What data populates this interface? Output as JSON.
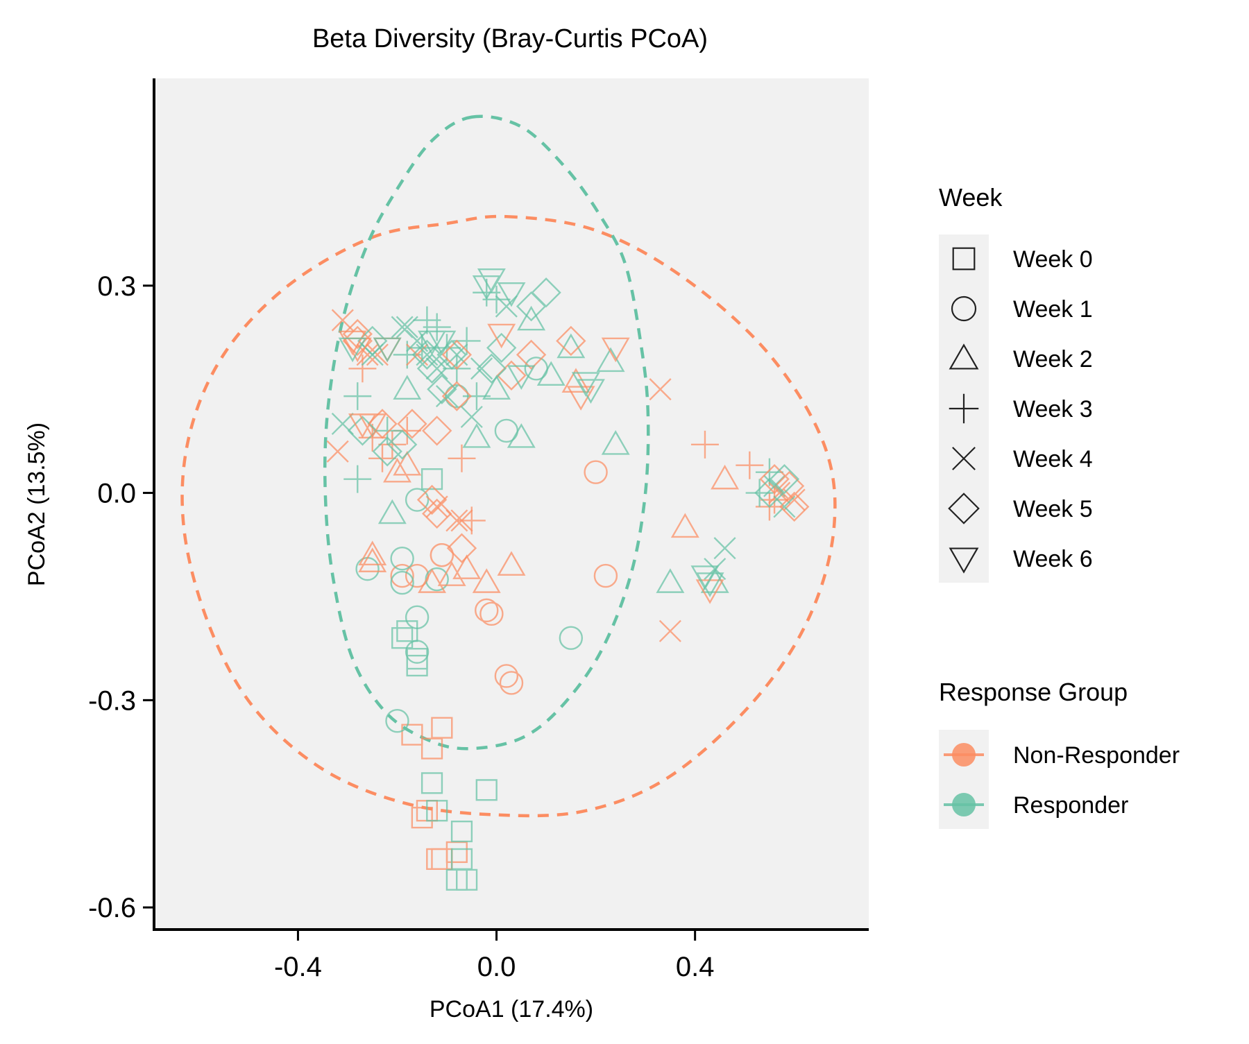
{
  "chart_data": {
    "type": "scatter",
    "title": "Beta Diversity (Bray-Curtis PCoA)",
    "xlabel": "PCoA1 (17.4%)",
    "ylabel": "PCoA2 (13.5%)",
    "xlim": [
      -0.69,
      0.75
    ],
    "ylim": [
      -0.63,
      0.6
    ],
    "x_ticks": [
      -0.4,
      0.0,
      0.4
    ],
    "x_tick_labels": [
      "-0.4",
      "0.0",
      "0.4"
    ],
    "y_ticks": [
      0.3,
      0.0,
      -0.3,
      -0.6
    ],
    "y_tick_labels": [
      "0.3",
      "0.0",
      "-0.3",
      "-0.6"
    ],
    "grid": false,
    "background": "#f1f1f1",
    "colors": {
      "Non-Responder": "#fc8d62",
      "Responder": "#66c2a5"
    },
    "legend_placement": "right",
    "shape_legend": {
      "title": "Week",
      "items": [
        {
          "label": "Week 0",
          "shape": "square"
        },
        {
          "label": "Week 1",
          "shape": "circle"
        },
        {
          "label": "Week 2",
          "shape": "triangle"
        },
        {
          "label": "Week 3",
          "shape": "plus"
        },
        {
          "label": "Week 4",
          "shape": "cross"
        },
        {
          "label": "Week 5",
          "shape": "diamond"
        },
        {
          "label": "Week 6",
          "shape": "triangle-down"
        }
      ]
    },
    "color_legend": {
      "title": "Response Group",
      "items": [
        {
          "label": "Non-Responder",
          "color": "#fc8d62"
        },
        {
          "label": "Responder",
          "color": "#66c2a5"
        }
      ]
    },
    "ellipses": [
      {
        "group": "Non-Responder",
        "color": "#fc8d62",
        "linestyle": "dashed",
        "path": [
          [
            0.02,
            0.4
          ],
          [
            0.2,
            0.38
          ],
          [
            0.38,
            0.31
          ],
          [
            0.55,
            0.2
          ],
          [
            0.66,
            0.07
          ],
          [
            0.68,
            -0.05
          ],
          [
            0.63,
            -0.18
          ],
          [
            0.52,
            -0.3
          ],
          [
            0.35,
            -0.41
          ],
          [
            0.18,
            -0.46
          ],
          [
            0.0,
            -0.466
          ],
          [
            -0.18,
            -0.45
          ],
          [
            -0.35,
            -0.4
          ],
          [
            -0.49,
            -0.31
          ],
          [
            -0.58,
            -0.19
          ],
          [
            -0.63,
            -0.05
          ],
          [
            -0.62,
            0.08
          ],
          [
            -0.55,
            0.2
          ],
          [
            -0.42,
            0.3
          ],
          [
            -0.25,
            0.37
          ],
          [
            -0.1,
            0.39
          ],
          [
            0.02,
            0.4
          ]
        ]
      },
      {
        "group": "Responder",
        "color": "#66c2a5",
        "linestyle": "dashed",
        "path": [
          [
            -0.05,
            0.544
          ],
          [
            0.05,
            0.53
          ],
          [
            0.14,
            0.47
          ],
          [
            0.21,
            0.4
          ],
          [
            0.26,
            0.33
          ],
          [
            0.29,
            0.22
          ],
          [
            0.305,
            0.12
          ],
          [
            0.3,
            0.0
          ],
          [
            0.27,
            -0.12
          ],
          [
            0.21,
            -0.23
          ],
          [
            0.13,
            -0.31
          ],
          [
            0.05,
            -0.355
          ],
          [
            -0.05,
            -0.37
          ],
          [
            -0.13,
            -0.36
          ],
          [
            -0.22,
            -0.32
          ],
          [
            -0.29,
            -0.24
          ],
          [
            -0.33,
            -0.12
          ],
          [
            -0.345,
            0.0
          ],
          [
            -0.34,
            0.12
          ],
          [
            -0.31,
            0.25
          ],
          [
            -0.26,
            0.36
          ],
          [
            -0.2,
            0.44
          ],
          [
            -0.13,
            0.51
          ],
          [
            -0.05,
            0.544
          ]
        ]
      }
    ],
    "series": [
      {
        "group": "Non-Responder",
        "week": "Week 0",
        "shape": "square",
        "x": [
          -0.17,
          -0.11,
          -0.13,
          -0.14,
          -0.15,
          -0.11,
          -0.12,
          -0.08
        ],
        "y": [
          -0.35,
          -0.34,
          -0.37,
          -0.46,
          -0.47,
          -0.53,
          -0.53,
          -0.52
        ]
      },
      {
        "group": "Responder",
        "week": "Week 0",
        "shape": "square",
        "x": [
          -0.19,
          -0.18,
          -0.16,
          -0.16,
          -0.13,
          -0.13,
          -0.12,
          -0.02,
          -0.07,
          -0.07,
          -0.08,
          -0.06
        ],
        "y": [
          -0.21,
          -0.2,
          -0.24,
          -0.25,
          0.02,
          -0.42,
          -0.46,
          -0.43,
          -0.49,
          -0.53,
          -0.56,
          -0.56
        ]
      },
      {
        "group": "Non-Responder",
        "week": "Week 1",
        "shape": "circle",
        "x": [
          -0.19,
          -0.16,
          -0.11,
          -0.11,
          -0.02,
          -0.01,
          0.02,
          0.03,
          0.2,
          0.22
        ],
        "y": [
          -0.12,
          -0.12,
          -0.09,
          -0.09,
          -0.17,
          -0.175,
          -0.265,
          -0.275,
          0.03,
          -0.12
        ]
      },
      {
        "group": "Responder",
        "week": "Week 1",
        "shape": "circle",
        "x": [
          -0.26,
          -0.19,
          -0.19,
          -0.12,
          -0.16,
          -0.16,
          -0.16,
          -0.2,
          -0.08,
          0.02,
          0.08,
          0.15
        ],
        "y": [
          -0.11,
          -0.095,
          -0.13,
          -0.125,
          -0.18,
          -0.23,
          -0.01,
          -0.33,
          0.14,
          0.09,
          0.18,
          -0.21
        ]
      },
      {
        "group": "Non-Responder",
        "week": "Week 2",
        "shape": "triangle",
        "x": [
          -0.25,
          -0.25,
          -0.2,
          -0.18,
          -0.13,
          -0.09,
          -0.06,
          -0.02,
          0.03,
          0.16,
          0.38,
          0.46
        ],
        "y": [
          -0.09,
          -0.1,
          0.03,
          0.04,
          -0.13,
          -0.12,
          -0.11,
          -0.13,
          -0.105,
          0.16,
          -0.05,
          0.02
        ]
      },
      {
        "group": "Responder",
        "week": "Week 2",
        "shape": "triangle",
        "x": [
          -0.21,
          -0.18,
          -0.04,
          0.0,
          0.05,
          0.07,
          0.11,
          0.15,
          0.23,
          0.24,
          0.35,
          0.44
        ],
        "y": [
          -0.03,
          0.15,
          0.08,
          0.15,
          0.08,
          0.25,
          0.17,
          0.21,
          0.19,
          0.07,
          -0.13,
          -0.13
        ]
      },
      {
        "group": "Non-Responder",
        "week": "Week 3",
        "shape": "plus",
        "x": [
          -0.27,
          -0.23,
          -0.21,
          -0.25,
          -0.18,
          -0.07,
          -0.05,
          0.42,
          0.51,
          0.55,
          0.56
        ],
        "y": [
          0.18,
          0.05,
          0.07,
          0.08,
          0.09,
          0.05,
          -0.04,
          0.07,
          0.04,
          -0.02,
          -0.01
        ]
      },
      {
        "group": "Responder",
        "week": "Week 3",
        "shape": "plus",
        "x": [
          -0.28,
          -0.28,
          -0.22,
          -0.18,
          -0.15,
          -0.14,
          -0.12,
          -0.1,
          -0.08,
          -0.06,
          -0.04,
          -0.02,
          0.0,
          0.53,
          0.55
        ],
        "y": [
          0.14,
          0.02,
          0.09,
          0.2,
          0.21,
          0.25,
          0.24,
          0.21,
          0.18,
          0.22,
          0.14,
          0.29,
          0.28,
          0.0,
          0.03
        ]
      },
      {
        "group": "Non-Responder",
        "week": "Week 4",
        "shape": "cross",
        "x": [
          -0.31,
          -0.32,
          -0.24,
          -0.26,
          -0.16,
          -0.12,
          -0.08,
          -0.07,
          0.33,
          0.35,
          0.57,
          0.6
        ],
        "y": [
          0.25,
          0.06,
          0.2,
          0.2,
          0.2,
          -0.02,
          -0.04,
          -0.04,
          0.15,
          -0.2,
          0.0,
          -0.01
        ]
      },
      {
        "group": "Responder",
        "week": "Week 4",
        "shape": "cross",
        "x": [
          -0.31,
          -0.25,
          -0.19,
          -0.18,
          -0.16,
          -0.14,
          -0.12,
          -0.1,
          -0.08,
          -0.05,
          -0.03,
          0.02,
          0.44,
          0.46,
          0.56,
          0.58
        ],
        "y": [
          0.1,
          0.2,
          0.24,
          0.24,
          0.22,
          0.2,
          0.18,
          0.14,
          0.2,
          0.11,
          0.18,
          0.27,
          -0.11,
          -0.08,
          0.01,
          -0.02
        ]
      },
      {
        "group": "Non-Responder",
        "week": "Week 5",
        "shape": "diamond",
        "x": [
          -0.28,
          -0.28,
          -0.23,
          -0.17,
          -0.12,
          -0.08,
          -0.08,
          -0.07,
          -0.13,
          -0.12,
          0.03,
          0.07,
          0.15,
          0.56,
          0.59,
          0.6
        ],
        "y": [
          0.23,
          0.22,
          0.1,
          0.1,
          0.09,
          0.2,
          0.14,
          -0.08,
          -0.01,
          -0.03,
          0.17,
          0.2,
          0.22,
          0.02,
          0.01,
          -0.02
        ]
      },
      {
        "group": "Responder",
        "week": "Week 5",
        "shape": "diamond",
        "x": [
          -0.25,
          -0.27,
          -0.22,
          -0.19,
          -0.14,
          -0.13,
          -0.11,
          -0.09,
          -0.01,
          0.01,
          0.07,
          0.1,
          0.55,
          0.58
        ],
        "y": [
          0.22,
          0.09,
          0.06,
          0.07,
          0.2,
          0.18,
          0.15,
          0.2,
          0.18,
          0.21,
          0.27,
          0.29,
          0.0,
          0.02
        ]
      },
      {
        "group": "Non-Responder",
        "week": "Week 6",
        "shape": "triangle-down",
        "x": [
          -0.29,
          -0.28,
          -0.27,
          -0.25,
          -0.22,
          0.01,
          0.17,
          0.24,
          0.43
        ],
        "y": [
          0.22,
          0.21,
          0.1,
          0.1,
          0.21,
          0.23,
          0.14,
          0.21,
          -0.14
        ]
      },
      {
        "group": "Responder",
        "week": "Week 6",
        "shape": "triangle-down",
        "x": [
          -0.29,
          -0.22,
          -0.13,
          -0.11,
          -0.02,
          -0.01,
          0.03,
          0.05,
          0.18,
          0.19,
          0.42,
          0.43
        ],
        "y": [
          0.21,
          0.21,
          0.22,
          0.22,
          0.3,
          0.31,
          0.29,
          0.17,
          0.16,
          0.15,
          -0.12,
          -0.13
        ]
      }
    ]
  }
}
